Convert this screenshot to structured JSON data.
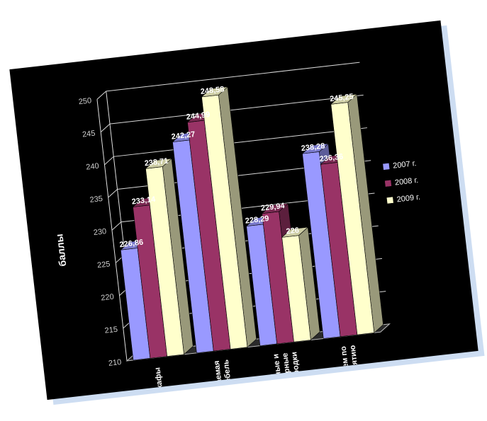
{
  "chart_data": {
    "type": "bar",
    "title": "",
    "ylabel": "баллы",
    "xlabel": "",
    "ylim": [
      210,
      250
    ],
    "yticks": [
      210,
      215,
      220,
      225,
      230,
      235,
      240,
      245,
      250
    ],
    "tick_labels": [
      "210",
      "215",
      "220",
      "225",
      "230",
      "235",
      "240",
      "245",
      "250"
    ],
    "grid": true,
    "legend_position": "right",
    "categories": [
      "Стенные шкафы",
      "Встраиваемая мебель",
      "Зеркальные и дверные перегородки",
      "В среднем по предприятию"
    ],
    "series": [
      {
        "name": "2007 г.",
        "color": "#9999ff",
        "values": [
          226.86,
          242.27,
          228.29,
          238.28
        ],
        "labels": [
          "226,86",
          "242,27",
          "228,29",
          "238,28"
        ]
      },
      {
        "name": "2008 г.",
        "color": "#993366",
        "values": [
          233.14,
          244.99,
          229.94,
          236.36
        ],
        "labels": [
          "233,14",
          "244,99",
          "229,94",
          "236,36"
        ]
      },
      {
        "name": "2009 г.",
        "color": "#ffffcc",
        "values": [
          238.71,
          248.58,
          226.0,
          245.25
        ],
        "labels": [
          "238,71",
          "248,58",
          "226",
          "245,25"
        ]
      }
    ]
  }
}
